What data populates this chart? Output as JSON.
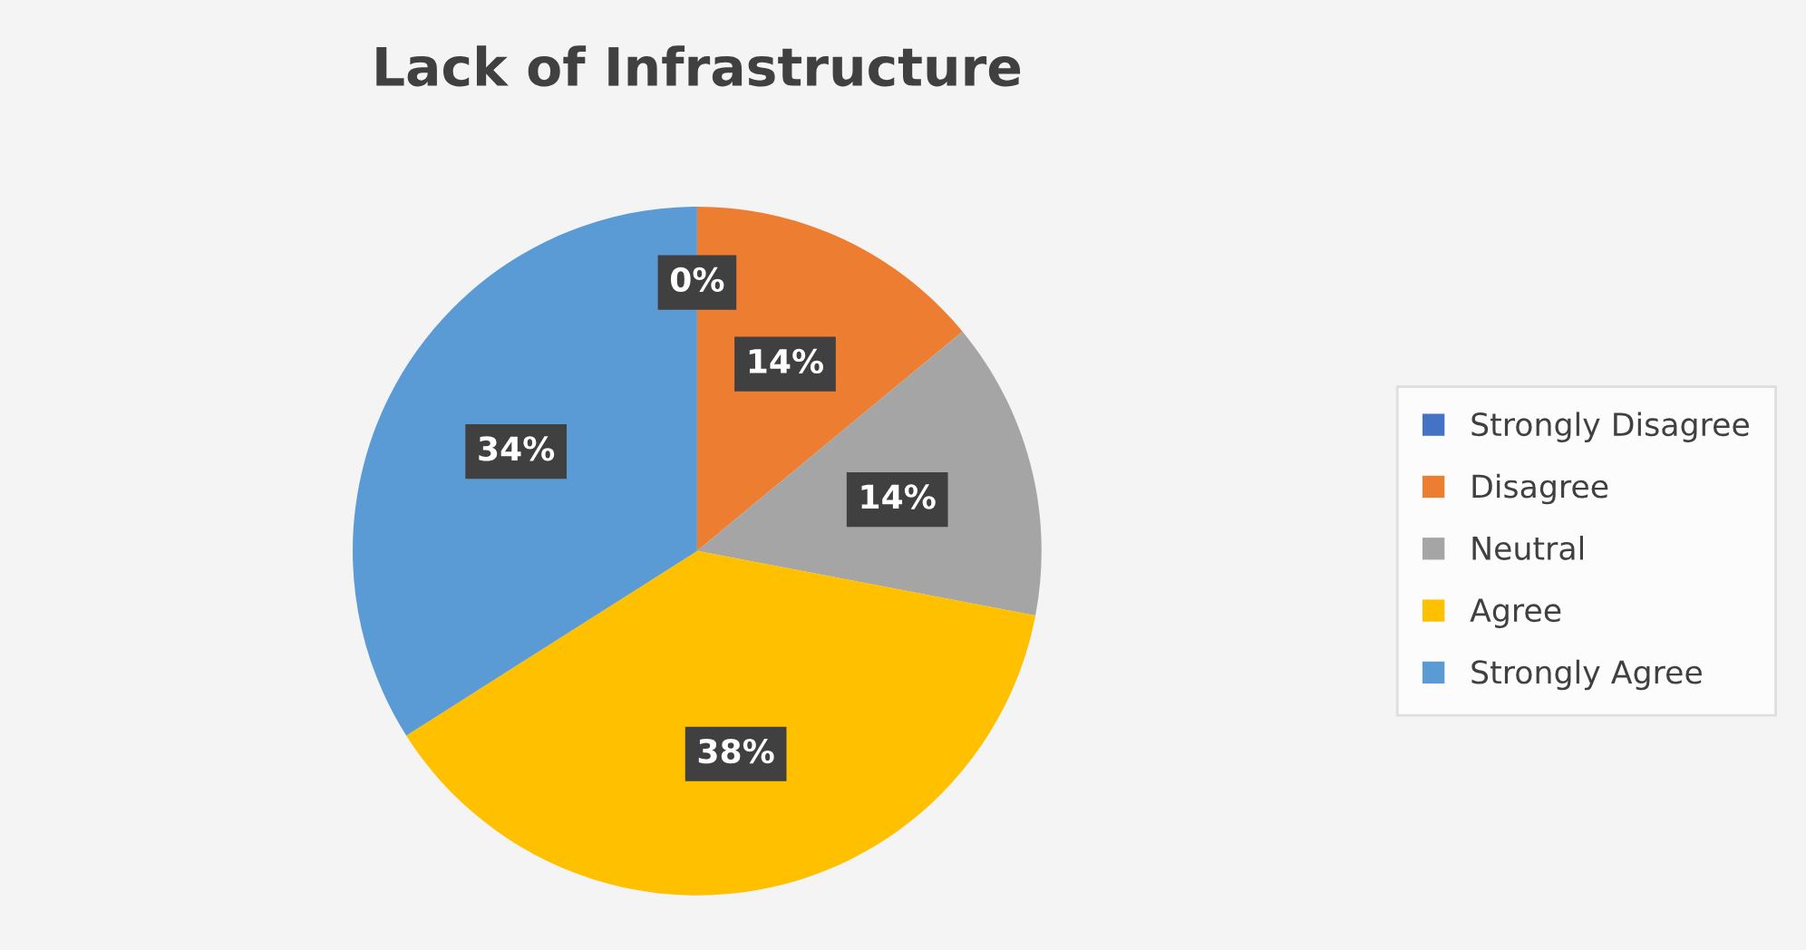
{
  "chart_data": {
    "type": "pie",
    "title": "Lack of Infrastructure",
    "categories": [
      "Strongly Disagree",
      "Disagree",
      "Neutral",
      "Agree",
      "Strongly Agree"
    ],
    "values": [
      0,
      14,
      14,
      38,
      34
    ],
    "colors": [
      "#4472c4",
      "#ed7d31",
      "#a5a5a5",
      "#ffc000",
      "#5b9bd5"
    ],
    "value_labels": [
      "0%",
      "14%",
      "14%",
      "38%",
      "34%"
    ],
    "legend": "right"
  }
}
